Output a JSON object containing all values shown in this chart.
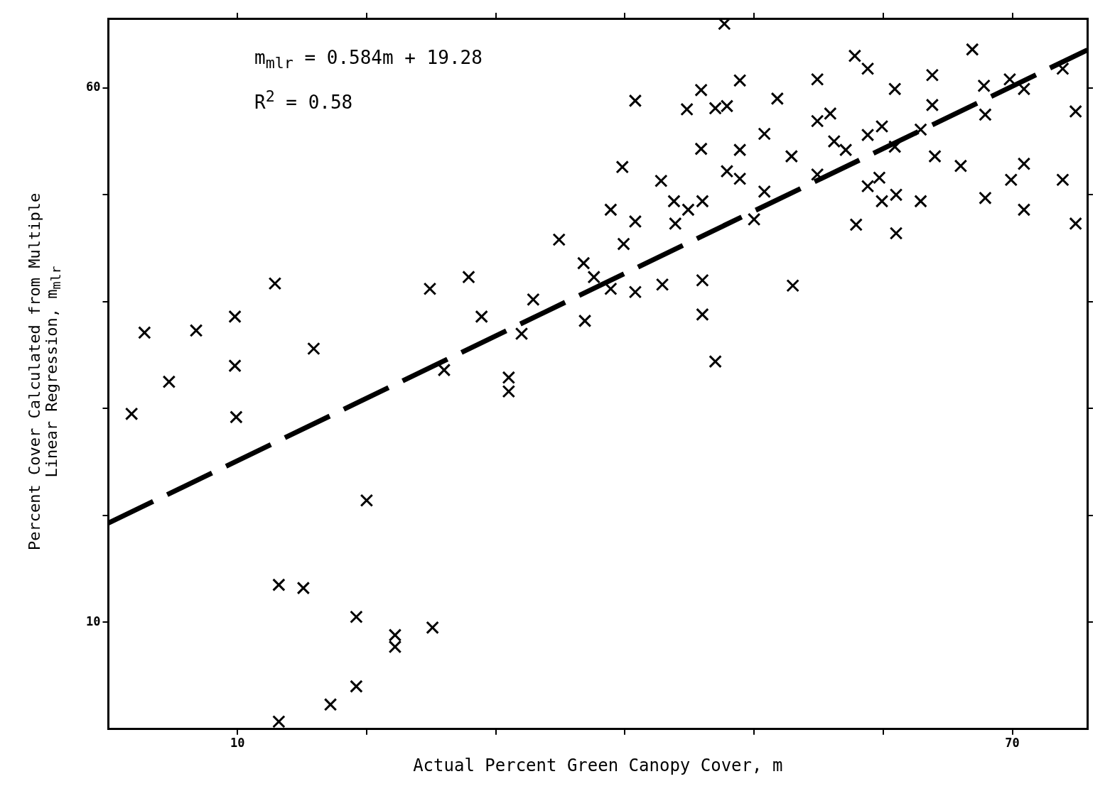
{
  "chart_data": {
    "type": "scatter",
    "xlabel": "Actual Percent Green Canopy Cover, m",
    "ylabel": "Percent Cover Calculated from Multiple Linear Regression, m$_{mlr}$",
    "annotations": [
      "m$_{mlr}$ = 0.584m + 19.28",
      "R$^{2}$ = 0.58"
    ],
    "xlim": [
      0,
      75.8
    ],
    "ylim": [
      0,
      66.5
    ],
    "xticks": [
      {
        "value": 10,
        "label": "10"
      },
      {
        "value": 20,
        "label": null
      },
      {
        "value": 30,
        "label": null
      },
      {
        "value": 40,
        "label": null
      },
      {
        "value": 50,
        "label": null
      },
      {
        "value": 60,
        "label": null
      },
      {
        "value": 70,
        "label": "70"
      }
    ],
    "yticks": [
      {
        "value": 10,
        "label": "10"
      },
      {
        "value": 20,
        "label": null
      },
      {
        "value": 30,
        "label": null
      },
      {
        "value": 40,
        "label": null
      },
      {
        "value": 50,
        "label": null
      },
      {
        "value": 60,
        "label": "60"
      }
    ],
    "grid": false,
    "legend": false,
    "series": [
      {
        "color": "#000000",
        "marker": "cross",
        "x": [
          1.8,
          2.8,
          4.7,
          6.8,
          9.8,
          9.8,
          9.9,
          12.9,
          15.9,
          13.2,
          15.1,
          13.2,
          17.2,
          19.2,
          19.2,
          20.0,
          22.2,
          22.2,
          25.1,
          24.9,
          26.0,
          27.9,
          28.9,
          31.0,
          31.0,
          32.0,
          32.9,
          34.9,
          36.8,
          36.9,
          37.6,
          38.9,
          38.9,
          39.8,
          39.9,
          40.8,
          40.8,
          40.8,
          42.8,
          42.9,
          43.8,
          43.9,
          44.8,
          44.9,
          45.9,
          45.9,
          46.0,
          46.0,
          46.0,
          47.0,
          47.0,
          47.7,
          47.9,
          47.9,
          48.9,
          48.9,
          48.9,
          50.0,
          50.8,
          50.8,
          51.8,
          52.9,
          53.0,
          54.9,
          54.9,
          54.9,
          55.9,
          56.2,
          57.1,
          57.8,
          57.9,
          58.8,
          58.8,
          58.8,
          59.7,
          59.9,
          59.9,
          60.9,
          60.9,
          61.0,
          61.0,
          62.9,
          62.9,
          63.8,
          63.8,
          64.0,
          66.0,
          66.9,
          67.8,
          67.9,
          67.9,
          69.8,
          69.9,
          70.9,
          70.9,
          70.9,
          73.9,
          73.9,
          74.9,
          74.9
        ],
        "values": [
          29.5,
          37.1,
          32.5,
          37.3,
          38.6,
          34.0,
          29.2,
          41.7,
          35.6,
          13.5,
          13.2,
          0.7,
          2.3,
          10.5,
          4.0,
          21.4,
          8.8,
          7.7,
          9.5,
          41.2,
          33.6,
          42.3,
          38.6,
          32.9,
          31.6,
          37.0,
          40.2,
          45.8,
          43.6,
          38.2,
          42.3,
          48.6,
          41.2,
          52.6,
          45.4,
          58.8,
          47.5,
          40.9,
          51.3,
          41.6,
          49.4,
          47.3,
          58.0,
          48.6,
          59.8,
          54.3,
          49.4,
          42.0,
          38.8,
          58.1,
          34.4,
          66.0,
          58.3,
          52.2,
          54.2,
          51.5,
          60.7,
          47.7,
          55.7,
          50.3,
          59.0,
          53.6,
          41.5,
          60.8,
          56.9,
          51.9,
          57.6,
          55.0,
          54.2,
          63.0,
          47.2,
          61.8,
          55.6,
          50.8,
          51.6,
          49.4,
          56.4,
          59.9,
          54.5,
          50.0,
          46.4,
          56.1,
          49.4,
          61.2,
          58.4,
          53.6,
          52.7,
          63.6,
          60.2,
          57.5,
          49.7,
          60.8,
          51.4,
          59.9,
          52.9,
          48.6,
          61.8,
          51.4,
          57.8,
          47.3
        ]
      },
      {
        "type": "line",
        "color": "#000000",
        "line_style": "dashed",
        "marker": "none",
        "x": [
          0,
          75.8
        ],
        "values": [
          19.28,
          63.55
        ]
      }
    ]
  }
}
